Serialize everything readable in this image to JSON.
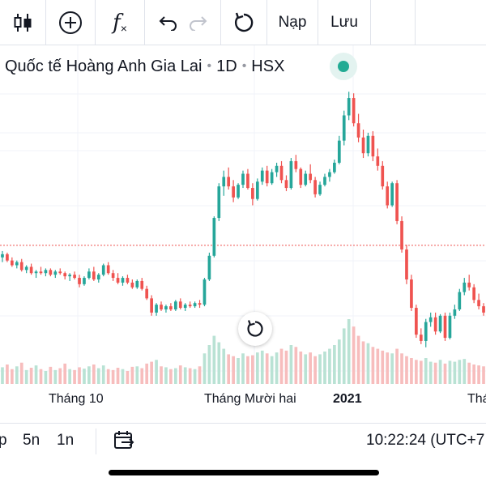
{
  "toolbar": {
    "items": [
      {
        "name": "candles-icon"
      },
      {
        "name": "add-indicator-icon"
      },
      {
        "name": "function-icon",
        "label": "f"
      },
      {
        "name": "undo-icon"
      },
      {
        "name": "redo-icon"
      },
      {
        "name": "reload-icon"
      }
    ],
    "load_label": "Nạp",
    "save_label": "Lưu"
  },
  "legend": {
    "symbol_name": "Quốc tế Hoàng Anh Gia Lai",
    "interval": "1D",
    "exchange": "HSX",
    "separator": "•",
    "status_color": "#22ab94"
  },
  "chart_data": {
    "type": "candlestick",
    "colors": {
      "up": "#26a69a",
      "down": "#ef5350"
    },
    "x_labels": [
      "Tháng 10",
      "Tháng Mười hai",
      "2021",
      "Thá"
    ],
    "bold_x_label": "2021",
    "current_price_line": true,
    "ohlc": [
      [
        5.05,
        5.25,
        4.9,
        5.15
      ],
      [
        5.15,
        5.2,
        4.9,
        4.95
      ],
      [
        4.95,
        5.05,
        4.75,
        4.8
      ],
      [
        4.8,
        4.95,
        4.7,
        4.9
      ],
      [
        4.9,
        5.0,
        4.6,
        4.65
      ],
      [
        4.65,
        4.8,
        4.55,
        4.75
      ],
      [
        4.75,
        4.85,
        4.5,
        4.55
      ],
      [
        4.55,
        4.65,
        4.4,
        4.6
      ],
      [
        4.6,
        4.75,
        4.5,
        4.55
      ],
      [
        4.55,
        4.7,
        4.45,
        4.65
      ],
      [
        4.65,
        4.7,
        4.45,
        4.5
      ],
      [
        4.5,
        4.65,
        4.4,
        4.6
      ],
      [
        4.6,
        4.7,
        4.5,
        4.55
      ],
      [
        4.55,
        4.6,
        4.35,
        4.45
      ],
      [
        4.45,
        4.55,
        4.3,
        4.5
      ],
      [
        4.5,
        4.6,
        4.35,
        4.4
      ],
      [
        4.4,
        4.5,
        4.1,
        4.2
      ],
      [
        4.2,
        4.45,
        4.15,
        4.4
      ],
      [
        4.4,
        4.7,
        4.35,
        4.6
      ],
      [
        4.6,
        4.75,
        4.3,
        4.35
      ],
      [
        4.35,
        4.55,
        4.25,
        4.5
      ],
      [
        4.5,
        4.85,
        4.45,
        4.8
      ],
      [
        4.8,
        4.9,
        4.5,
        4.55
      ],
      [
        4.55,
        4.65,
        4.3,
        4.4
      ],
      [
        4.4,
        4.55,
        4.2,
        4.25
      ],
      [
        4.25,
        4.45,
        4.15,
        4.4
      ],
      [
        4.4,
        4.5,
        4.2,
        4.25
      ],
      [
        4.25,
        4.35,
        4.05,
        4.1
      ],
      [
        4.1,
        4.35,
        4.05,
        4.3
      ],
      [
        4.3,
        4.4,
        4.0,
        4.05
      ],
      [
        4.05,
        4.15,
        3.7,
        3.75
      ],
      [
        3.75,
        3.85,
        3.2,
        3.3
      ],
      [
        3.3,
        3.6,
        3.2,
        3.55
      ],
      [
        3.55,
        3.65,
        3.35,
        3.4
      ],
      [
        3.4,
        3.55,
        3.3,
        3.5
      ],
      [
        3.5,
        3.6,
        3.35,
        3.4
      ],
      [
        3.4,
        3.7,
        3.35,
        3.65
      ],
      [
        3.65,
        3.75,
        3.4,
        3.45
      ],
      [
        3.45,
        3.6,
        3.35,
        3.55
      ],
      [
        3.55,
        3.65,
        3.45,
        3.5
      ],
      [
        3.5,
        3.65,
        3.45,
        3.6
      ],
      [
        3.6,
        3.7,
        3.45,
        3.55
      ],
      [
        3.55,
        4.4,
        3.5,
        4.35
      ],
      [
        4.35,
        5.2,
        4.3,
        5.1
      ],
      [
        5.1,
        6.35,
        5.05,
        6.3
      ],
      [
        6.3,
        7.4,
        6.2,
        7.3
      ],
      [
        7.3,
        7.8,
        7.0,
        7.6
      ],
      [
        7.6,
        7.9,
        7.2,
        7.3
      ],
      [
        7.3,
        7.5,
        6.8,
        6.95
      ],
      [
        6.95,
        7.4,
        6.9,
        7.35
      ],
      [
        7.35,
        7.8,
        7.25,
        7.7
      ],
      [
        7.7,
        7.85,
        7.2,
        7.25
      ],
      [
        7.25,
        7.4,
        6.7,
        6.9
      ],
      [
        6.9,
        7.55,
        6.85,
        7.45
      ],
      [
        7.45,
        7.9,
        7.35,
        7.8
      ],
      [
        7.8,
        7.95,
        7.3,
        7.4
      ],
      [
        7.4,
        7.85,
        7.35,
        7.75
      ],
      [
        7.75,
        8.05,
        7.6,
        7.95
      ],
      [
        7.95,
        8.1,
        7.4,
        7.5
      ],
      [
        7.5,
        7.65,
        7.15,
        7.25
      ],
      [
        7.25,
        8.2,
        7.2,
        8.1
      ],
      [
        8.1,
        8.3,
        7.75,
        7.85
      ],
      [
        7.85,
        7.9,
        7.25,
        7.35
      ],
      [
        7.35,
        7.8,
        7.3,
        7.7
      ],
      [
        7.7,
        8.0,
        7.4,
        7.5
      ],
      [
        7.5,
        7.6,
        6.95,
        7.05
      ],
      [
        7.05,
        7.45,
        7.0,
        7.35
      ],
      [
        7.35,
        7.7,
        7.3,
        7.6
      ],
      [
        7.6,
        7.85,
        7.45,
        7.75
      ],
      [
        7.75,
        8.15,
        7.7,
        8.05
      ],
      [
        8.05,
        8.9,
        8.0,
        8.75
      ],
      [
        8.75,
        9.7,
        8.6,
        9.55
      ],
      [
        9.55,
        10.3,
        9.4,
        10.1
      ],
      [
        10.1,
        10.25,
        9.2,
        9.3
      ],
      [
        9.3,
        9.6,
        8.7,
        8.85
      ],
      [
        8.85,
        9.1,
        8.2,
        8.35
      ],
      [
        8.35,
        9.0,
        8.25,
        8.9
      ],
      [
        8.9,
        9.05,
        8.1,
        8.25
      ],
      [
        8.25,
        8.5,
        7.8,
        7.95
      ],
      [
        7.95,
        8.1,
        7.2,
        7.3
      ],
      [
        7.3,
        7.45,
        6.6,
        6.7
      ],
      [
        6.7,
        7.45,
        6.65,
        7.4
      ],
      [
        7.4,
        7.5,
        6.1,
        6.2
      ],
      [
        6.2,
        6.35,
        5.2,
        5.3
      ],
      [
        5.3,
        5.45,
        4.2,
        4.35
      ],
      [
        4.35,
        4.5,
        3.35,
        3.45
      ],
      [
        3.45,
        3.55,
        2.5,
        2.6
      ],
      [
        2.6,
        2.8,
        2.3,
        2.4
      ],
      [
        2.4,
        3.1,
        2.2,
        3.0
      ],
      [
        3.0,
        3.3,
        2.85,
        3.15
      ],
      [
        3.15,
        3.3,
        2.6,
        2.7
      ],
      [
        2.7,
        3.25,
        2.65,
        3.2
      ],
      [
        3.2,
        3.3,
        2.4,
        2.5
      ],
      [
        2.5,
        3.3,
        2.45,
        3.2
      ],
      [
        3.2,
        3.55,
        3.1,
        3.4
      ],
      [
        3.4,
        4.05,
        3.35,
        3.95
      ],
      [
        3.95,
        4.4,
        3.85,
        4.25
      ],
      [
        4.25,
        4.5,
        4.0,
        4.1
      ],
      [
        4.1,
        4.2,
        3.6,
        3.7
      ],
      [
        3.7,
        3.9,
        3.4,
        3.5
      ],
      [
        3.5,
        3.6,
        3.2,
        3.3
      ]
    ],
    "volume": [
      180,
      210,
      160,
      190,
      230,
      150,
      175,
      200,
      160,
      140,
      185,
      150,
      170,
      220,
      160,
      150,
      180,
      165,
      190,
      210,
      170,
      200,
      160,
      150,
      175,
      160,
      140,
      185,
      190,
      170,
      220,
      240,
      260,
      190,
      180,
      160,
      170,
      200,
      180,
      170,
      160,
      190,
      330,
      420,
      520,
      450,
      380,
      320,
      300,
      280,
      330,
      300,
      310,
      340,
      360,
      330,
      300,
      340,
      380,
      360,
      420,
      400,
      350,
      320,
      340,
      300,
      320,
      350,
      380,
      420,
      480,
      600,
      700,
      620,
      520,
      460,
      440,
      400,
      380,
      360,
      340,
      330,
      380,
      330,
      300,
      280,
      260,
      250,
      280,
      240,
      230,
      260,
      220,
      250,
      240,
      260,
      270,
      230,
      210,
      200,
      190
    ],
    "y_range": [
      1.5,
      11
    ]
  },
  "bottom_bar": {
    "timeframes": [
      "p",
      "5n",
      "1n"
    ],
    "time": "10:22:24 (UTC+7"
  }
}
